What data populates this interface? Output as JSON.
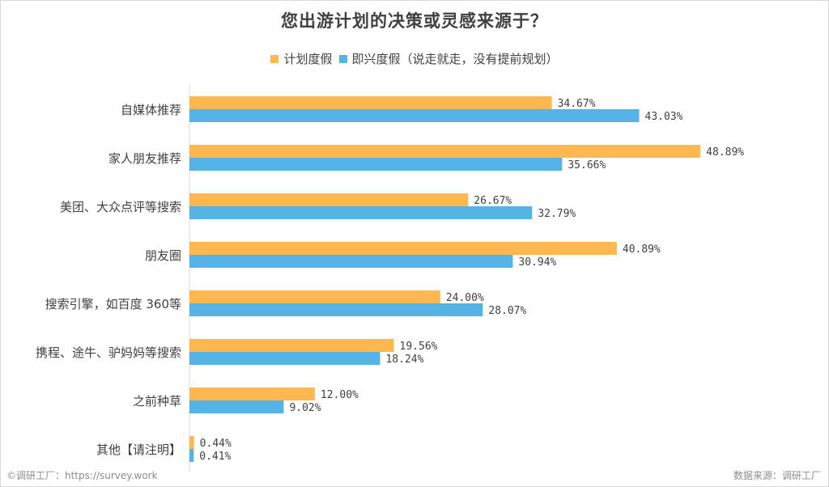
{
  "chart_data": {
    "type": "bar",
    "orientation": "horizontal",
    "title": "您出游计划的决策或灵感来源于？",
    "categories": [
      "自媒体推荐",
      "家人朋友推荐",
      "美团、大众点评等搜索",
      "朋友圈",
      "搜索引擎，如百度 360等",
      "携程、途牛、驴妈妈等搜索",
      "之前种草",
      "其他【请注明】"
    ],
    "series": [
      {
        "name": "计划度假",
        "color": "#ffb84f",
        "values": [
          34.67,
          48.89,
          26.67,
          40.89,
          24.0,
          19.56,
          12.0,
          0.44
        ],
        "labels": [
          "34.67%",
          "48.89%",
          "26.67%",
          "40.89%",
          "24.00%",
          "19.56%",
          "12.00%",
          "0.44%"
        ]
      },
      {
        "name": "即兴度假（说走就走，没有提前规划）",
        "color": "#55b3e6",
        "values": [
          43.03,
          35.66,
          32.79,
          30.94,
          28.07,
          18.24,
          9.02,
          0.41
        ],
        "labels": [
          "43.03%",
          "35.66%",
          "32.79%",
          "30.94%",
          "28.07%",
          "18.24%",
          "9.02%",
          "0.41%"
        ]
      }
    ],
    "legend_position": "top-center",
    "grid": false
  },
  "footer": {
    "source_left": "©调研工厂：https://survey.work",
    "source_right": "数据来源：调研工厂"
  }
}
